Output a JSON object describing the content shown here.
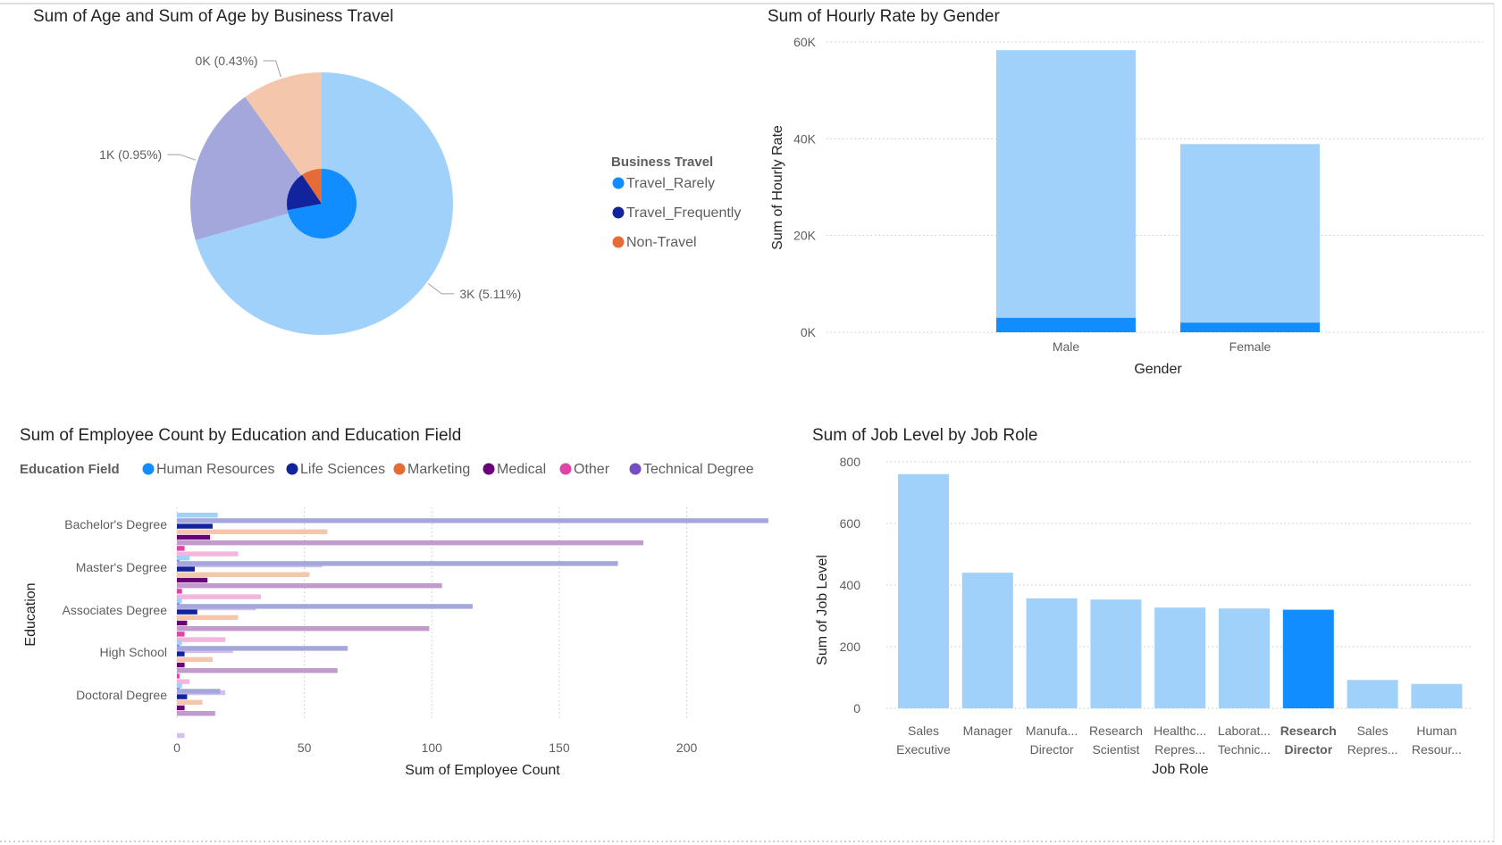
{
  "colors": {
    "light_blue": "#a0d1fb",
    "blue": "#118dff",
    "dark_blue": "#12239e",
    "peach": "#f4c6ac",
    "lavender": "#a3a7db",
    "orange": "#e66c37",
    "purple": "#6b007b",
    "pink": "#e044a7",
    "violet": "#744ec2"
  },
  "chart_data": [
    {
      "id": "pie",
      "type": "pie",
      "title": "Sum of Age and Sum of Age by Business Travel",
      "legend_title": "Business Travel",
      "legend_placement": "right",
      "categories": [
        "Travel_Rarely",
        "Travel_Frequently",
        "Non-Travel"
      ],
      "outer_ring": {
        "values": [
          70.5,
          19.6,
          9.9
        ],
        "labels": [
          "3K (5.11%)",
          "1K (0.95%)",
          "0K (0.43%)"
        ]
      },
      "inner_ring": {
        "values": [
          72,
          18.5,
          9.5
        ]
      }
    },
    {
      "id": "gender",
      "type": "bar",
      "title": "Sum of Hourly Rate by Gender",
      "xlabel": "Gender",
      "ylabel": "Sum of Hourly Rate",
      "categories": [
        "Male",
        "Female"
      ],
      "ylim": [
        0,
        60000
      ],
      "yticks": [
        "0K",
        "20K",
        "40K",
        "60K"
      ],
      "series": [
        {
          "values": [
            3000,
            2000
          ]
        },
        {
          "values": [
            58300,
            38900
          ]
        }
      ]
    },
    {
      "id": "education",
      "type": "bar",
      "orientation": "horizontal",
      "title": "Sum of Employee Count by Education and Education Field",
      "legend_title": "Education Field",
      "legend_placement": "top",
      "xlabel": "Sum of Employee Count",
      "ylabel": "Education",
      "xlim": [
        0,
        232
      ],
      "xticks": [
        "0",
        "50",
        "100",
        "150",
        "200"
      ],
      "categories": [
        "Bachelor's Degree",
        "Master's Degree",
        "Associates Degree",
        "High School",
        "Doctoral Degree"
      ],
      "series": [
        {
          "name": "Human Resources",
          "values": [
            16,
            5,
            2,
            2,
            2
          ]
        },
        {
          "name": "Life Sciences",
          "values": [
            14,
            7,
            8,
            3,
            4
          ]
        },
        {
          "name": "Marketing",
          "values": [
            59,
            52,
            24,
            14,
            10
          ]
        },
        {
          "name": "Medical",
          "values": [
            13,
            12,
            4,
            3,
            3
          ]
        },
        {
          "name": "Other",
          "values": [
            3,
            2,
            3,
            1,
            0
          ]
        },
        {
          "name": "Technical Degree",
          "values": [
            1,
            1,
            1,
            1,
            0
          ]
        }
      ],
      "faded_series": [
        {
          "values": [
            232,
            173,
            116,
            67,
            17
          ]
        },
        {
          "values": [
            183,
            104,
            99,
            63,
            15
          ]
        },
        {
          "values": [
            24,
            33,
            19,
            5,
            0
          ]
        },
        {
          "values": [
            57,
            31,
            22,
            19,
            3
          ]
        }
      ]
    },
    {
      "id": "jobrole",
      "type": "bar",
      "title": "Sum of Job Level by Job Role",
      "xlabel": "Job Role",
      "ylabel": "Sum of Job Level",
      "ylim": [
        0,
        800
      ],
      "yticks": [
        "0",
        "200",
        "400",
        "600",
        "800"
      ],
      "highlighted": "Research Director",
      "categories": [
        [
          "Sales",
          "Executive"
        ],
        [
          "Manager"
        ],
        [
          "Manufa...",
          "Director"
        ],
        [
          "Research",
          "Scientist"
        ],
        [
          "Healthc...",
          "Repres..."
        ],
        [
          "Laborat...",
          "Technic..."
        ],
        [
          "Research",
          "Director"
        ],
        [
          "Sales",
          "Repres..."
        ],
        [
          "Human",
          "Resour..."
        ]
      ],
      "values": [
        760,
        440,
        357,
        353,
        327,
        324,
        320,
        92,
        79
      ]
    }
  ]
}
